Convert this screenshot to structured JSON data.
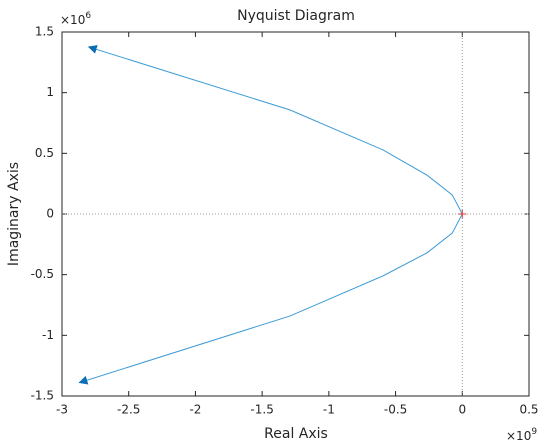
{
  "chart_data": {
    "type": "line",
    "title": "Nyquist Diagram",
    "x_label": "Real Axis",
    "y_label": "Imaginary Axis",
    "x_multiplier": {
      "base": "×10",
      "exponent": "9"
    },
    "y_multiplier": {
      "base": "×10",
      "exponent": "6"
    },
    "xlim": [
      -3,
      0.5
    ],
    "xticks": [
      -3,
      -2.5,
      -2,
      -1.5,
      -1,
      -0.5,
      0,
      0.5
    ],
    "ylim": [
      -1.5,
      1.5
    ],
    "yticks": [
      -1.5,
      -1,
      -0.5,
      0,
      0.5,
      1,
      1.5
    ],
    "zero_lines": true,
    "color": "#3d9bd6",
    "series": [
      {
        "color": "#3d9bd6",
        "x": [
          0,
          -0.075,
          -0.264,
          -0.594,
          -1.29,
          -2.8
        ],
        "values": [
          0,
          0.157,
          0.32,
          0.528,
          0.857,
          1.377
        ]
      },
      {
        "color": "#3d9bd6",
        "x": [
          0,
          -0.075,
          -0.264,
          -0.594,
          -1.29,
          -2.87
        ],
        "values": [
          0,
          -0.157,
          -0.32,
          -0.51,
          -0.84,
          -1.39
        ]
      }
    ]
  }
}
